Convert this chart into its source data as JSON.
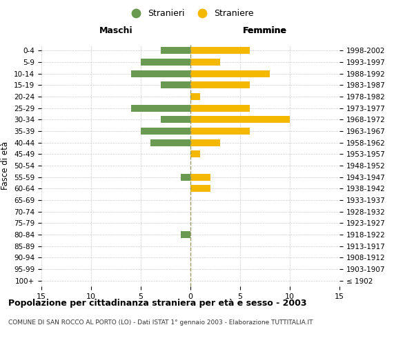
{
  "age_groups": [
    "100+",
    "95-99",
    "90-94",
    "85-89",
    "80-84",
    "75-79",
    "70-74",
    "65-69",
    "60-64",
    "55-59",
    "50-54",
    "45-49",
    "40-44",
    "35-39",
    "30-34",
    "25-29",
    "20-24",
    "15-19",
    "10-14",
    "5-9",
    "0-4"
  ],
  "birth_years": [
    "≤ 1902",
    "1903-1907",
    "1908-1912",
    "1913-1917",
    "1918-1922",
    "1923-1927",
    "1928-1932",
    "1933-1937",
    "1938-1942",
    "1943-1947",
    "1948-1952",
    "1953-1957",
    "1958-1962",
    "1963-1967",
    "1968-1972",
    "1973-1977",
    "1978-1982",
    "1983-1987",
    "1988-1992",
    "1993-1997",
    "1998-2002"
  ],
  "maschi": [
    0,
    0,
    0,
    0,
    1,
    0,
    0,
    0,
    0,
    1,
    0,
    0,
    4,
    5,
    3,
    6,
    0,
    3,
    6,
    5,
    3
  ],
  "femmine": [
    0,
    0,
    0,
    0,
    0,
    0,
    0,
    0,
    2,
    2,
    0,
    1,
    3,
    6,
    10,
    6,
    1,
    6,
    8,
    3,
    6
  ],
  "color_maschi": "#6a9a52",
  "color_femmine": "#f5b800",
  "title": "Popolazione per cittadinanza straniera per età e sesso - 2003",
  "subtitle": "COMUNE DI SAN ROCCO AL PORTO (LO) - Dati ISTAT 1° gennaio 2003 - Elaborazione TUTTITALIA.IT",
  "xlabel_left": "Maschi",
  "xlabel_right": "Femmine",
  "ylabel_left": "Fasce di età",
  "legend_maschi": "Stranieri",
  "legend_femmine": "Straniere",
  "xlim": 15,
  "background_color": "#ffffff",
  "grid_color": "#cccccc",
  "legend_dot_color_maschi": "#6a9a52",
  "legend_dot_color_femmine": "#f5b800"
}
